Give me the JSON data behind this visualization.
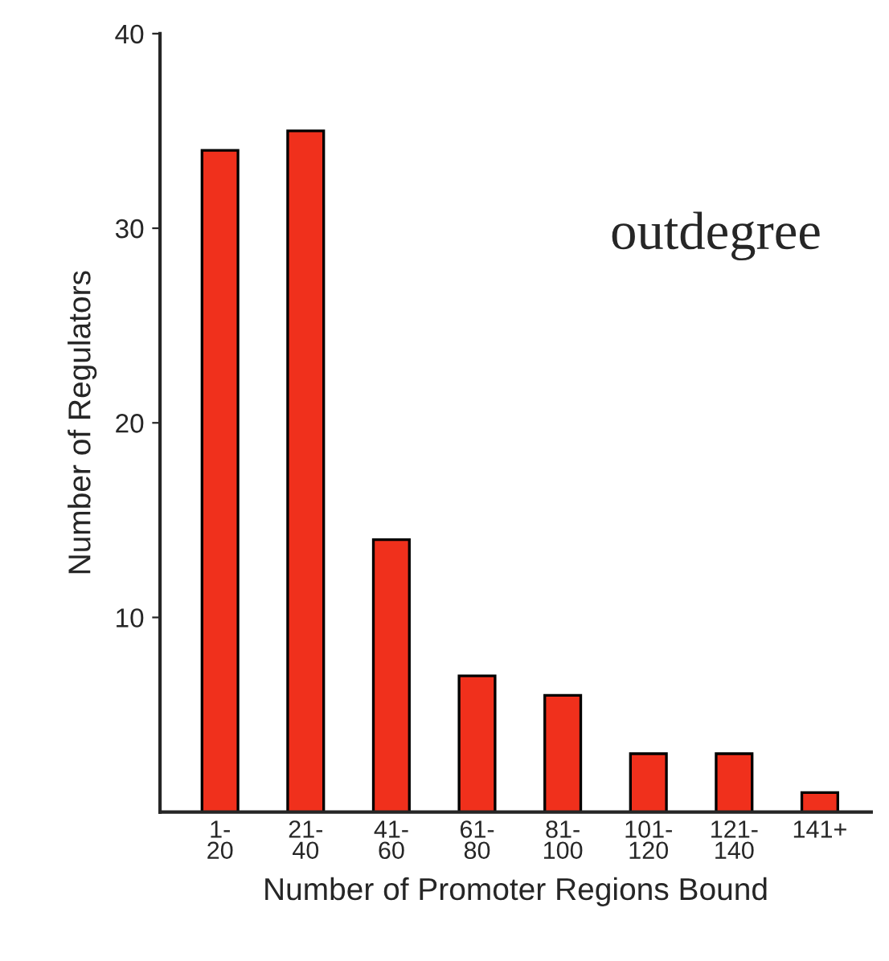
{
  "chart_data": {
    "type": "bar",
    "xlabel": "Number of Promoter Regions Bound",
    "ylabel": "Number of Regulators",
    "categories": [
      "1-\n20",
      "21-\n40",
      "41-\n60",
      "61-\n80",
      "81-\n100",
      "101-\n120",
      "121-\n140",
      "141+"
    ],
    "values": [
      34,
      35,
      14,
      7,
      6,
      3,
      3,
      1
    ],
    "color": "#f0301c",
    "ylim": [
      0,
      40
    ],
    "yticks": [
      10,
      20,
      30,
      40
    ],
    "grid": false,
    "annotations": [
      "outdegree"
    ]
  }
}
